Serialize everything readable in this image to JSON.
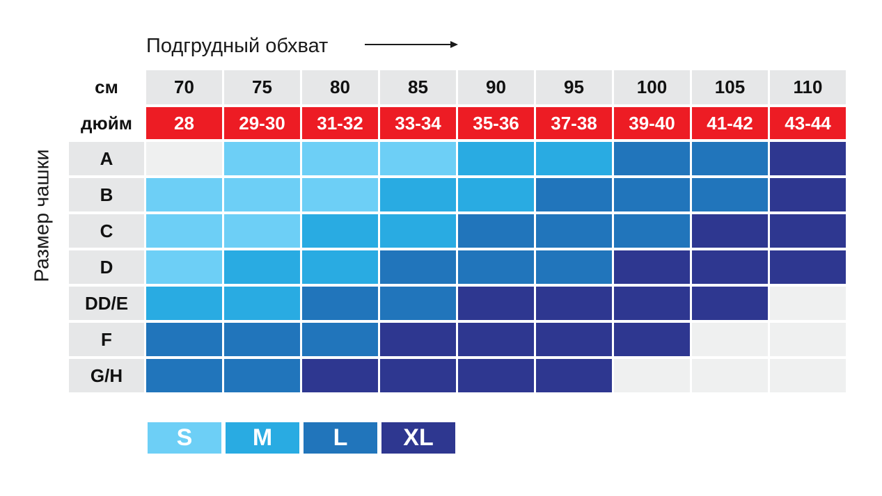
{
  "chart_data": {
    "type": "heatmap",
    "xlabel": "Подгрудный обхват",
    "ylabel": "Размер чашки",
    "row_labels": {
      "cm": "см",
      "inch": "дюйм"
    },
    "columns_cm": [
      "70",
      "75",
      "80",
      "85",
      "90",
      "95",
      "100",
      "105",
      "110"
    ],
    "columns_inch": [
      "28",
      "29-30",
      "31-32",
      "33-34",
      "35-36",
      "37-38",
      "39-40",
      "41-42",
      "43-44"
    ],
    "cups": [
      "A",
      "B",
      "C",
      "D",
      "DD/E",
      "F",
      "G/H"
    ],
    "sizes": [
      [
        "",
        "S",
        "S",
        "S",
        "M",
        "M",
        "L",
        "L",
        "XL"
      ],
      [
        "S",
        "S",
        "S",
        "M",
        "M",
        "L",
        "L",
        "L",
        "XL"
      ],
      [
        "S",
        "S",
        "M",
        "M",
        "L",
        "L",
        "L",
        "XL",
        "XL"
      ],
      [
        "S",
        "M",
        "M",
        "L",
        "L",
        "L",
        "XL",
        "XL",
        "XL"
      ],
      [
        "M",
        "M",
        "L",
        "L",
        "XL",
        "XL",
        "XL",
        "XL",
        ""
      ],
      [
        "L",
        "L",
        "L",
        "XL",
        "XL",
        "XL",
        "XL",
        "",
        ""
      ],
      [
        "L",
        "L",
        "XL",
        "XL",
        "XL",
        "XL",
        "",
        "",
        ""
      ]
    ],
    "legend": [
      {
        "label": "S",
        "color": "#6dcff6"
      },
      {
        "label": "M",
        "color": "#29abe2"
      },
      {
        "label": "L",
        "color": "#2175bb"
      },
      {
        "label": "XL",
        "color": "#2e3790"
      }
    ],
    "empty_color": "#eff0f0"
  }
}
